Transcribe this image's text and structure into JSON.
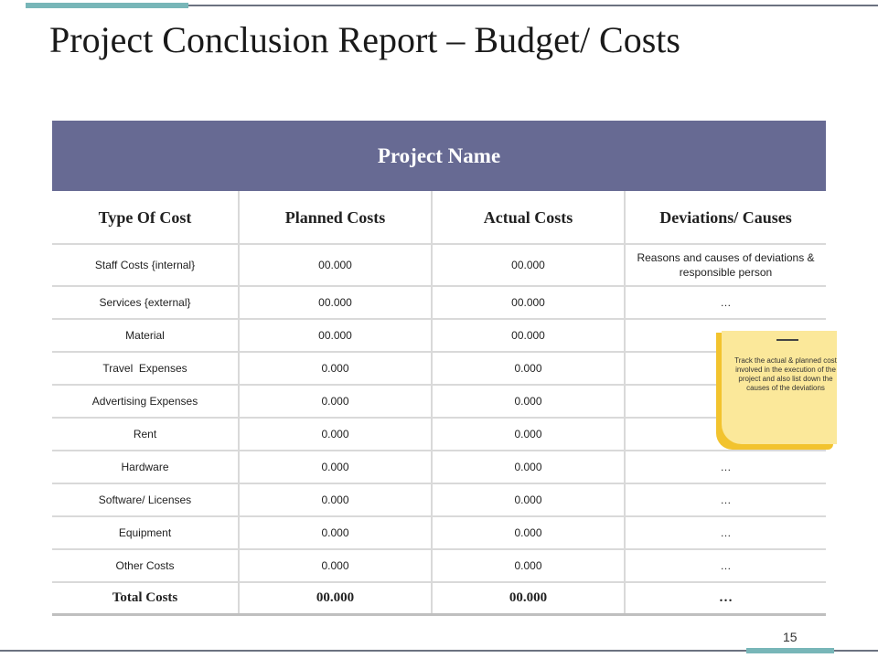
{
  "slide": {
    "title": "Project Conclusion Report – Budget/ Costs",
    "page_number": "15"
  },
  "table": {
    "project_name": "Project Name",
    "headers": [
      "Type Of Cost",
      "Planned Costs",
      "Actual Costs",
      "Deviations/ Causes"
    ],
    "rows": [
      {
        "type": "Staff Costs {internal}",
        "planned": "00.000",
        "actual": "00.000",
        "deviation": "Reasons and causes of deviations & responsible person"
      },
      {
        "type": "Services {external}",
        "planned": "00.000",
        "actual": "00.000",
        "deviation": "…"
      },
      {
        "type": "Material",
        "planned": "00.000",
        "actual": "00.000",
        "deviation": ""
      },
      {
        "type": "Travel  Expenses",
        "planned": "0.000",
        "actual": "0.000",
        "deviation": ""
      },
      {
        "type": "Advertising Expenses",
        "planned": "0.000",
        "actual": "0.000",
        "deviation": ""
      },
      {
        "type": "Rent",
        "planned": "0.000",
        "actual": "0.000",
        "deviation": ""
      },
      {
        "type": "Hardware",
        "planned": "0.000",
        "actual": "0.000",
        "deviation": "…"
      },
      {
        "type": "Software/ Licenses",
        "planned": "0.000",
        "actual": "0.000",
        "deviation": "…"
      },
      {
        "type": "Equipment",
        "planned": "0.000",
        "actual": "0.000",
        "deviation": "…"
      },
      {
        "type": "Other Costs",
        "planned": "0.000",
        "actual": "0.000",
        "deviation": "…"
      }
    ],
    "total": {
      "type": "Total Costs",
      "planned": "00.000",
      "actual": "00.000",
      "deviation": "…"
    }
  },
  "sticky_note": {
    "text": "Track the actual & planned cost involved in the execution of the project and also list down the causes of the deviations"
  },
  "colors": {
    "header_band": "#676a93",
    "accent": "#78b6b8",
    "sticky_light": "#fbe89a",
    "sticky_dark": "#f2c32e"
  }
}
